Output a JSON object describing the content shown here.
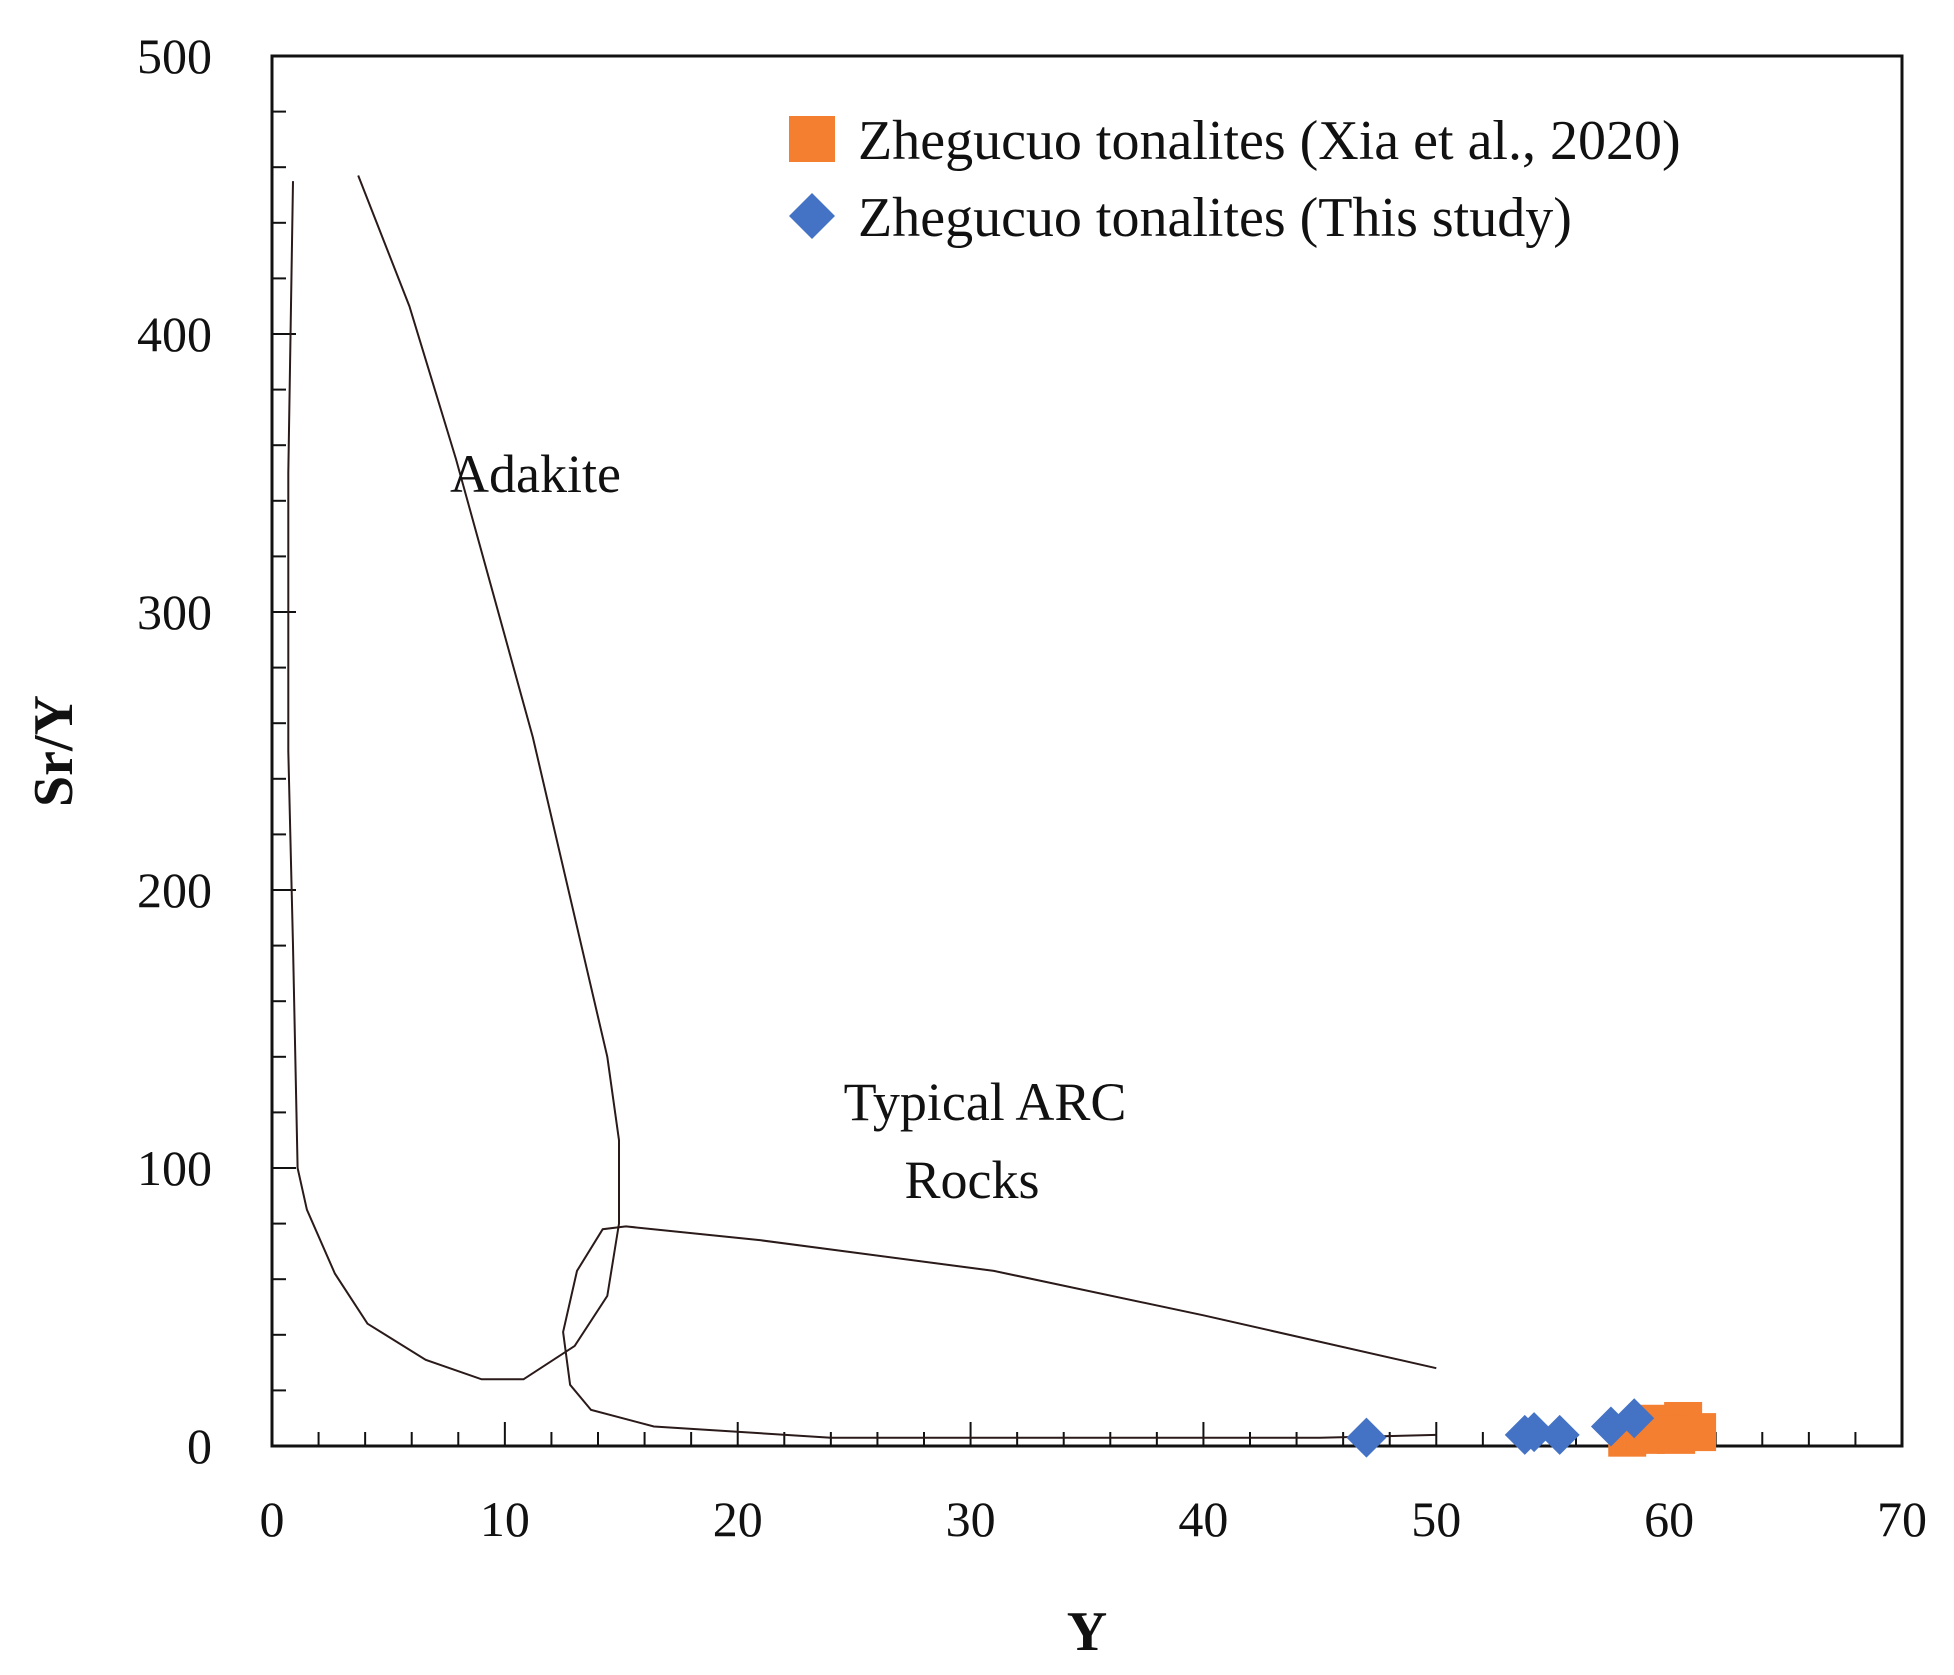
{
  "chart_data": {
    "type": "scatter",
    "title": "",
    "xlabel": "Y",
    "ylabel": "Sr/Y",
    "xlim": [
      0,
      70
    ],
    "ylim": [
      0,
      500
    ],
    "x_ticks": [
      0,
      10,
      20,
      30,
      40,
      50,
      60,
      70
    ],
    "y_ticks": [
      0,
      100,
      200,
      300,
      400,
      500
    ],
    "x_tick_labels": [
      "0",
      "10",
      "20",
      "30",
      "40",
      "50",
      "60",
      "70"
    ],
    "y_tick_labels": [
      "0",
      "100",
      "200",
      "300",
      "400",
      "500"
    ],
    "legend_position": "top-right",
    "series": [
      {
        "name": "Zhegucuo tonalites (Xia et al., 2020)",
        "marker": "square",
        "color": "#F47F30",
        "points": [
          [
            58.2,
            3
          ],
          [
            58.8,
            6
          ],
          [
            59.4,
            8
          ],
          [
            60.0,
            7
          ],
          [
            60.6,
            9
          ],
          [
            61.2,
            5
          ],
          [
            59.0,
            4
          ],
          [
            60.3,
            4
          ]
        ]
      },
      {
        "name": "Zhegucuo tonalites (This study)",
        "marker": "diamond",
        "color": "#4472C4",
        "points": [
          [
            47.0,
            3
          ],
          [
            53.8,
            4
          ],
          [
            54.2,
            5
          ],
          [
            55.3,
            4
          ],
          [
            57.5,
            7
          ],
          [
            58.5,
            10
          ]
        ]
      }
    ],
    "regions": [
      {
        "name": "Adakite",
        "label": "Adakite",
        "boundary": [
          [
            0.9,
            455
          ],
          [
            0.7,
            350
          ],
          [
            0.7,
            250
          ],
          [
            0.9,
            180
          ],
          [
            1.1,
            100
          ],
          [
            1.5,
            85
          ],
          [
            2.7,
            62
          ],
          [
            4.1,
            44
          ],
          [
            6.6,
            31
          ],
          [
            9.0,
            24
          ],
          [
            10.8,
            24
          ],
          [
            13.0,
            36
          ],
          [
            14.4,
            54
          ],
          [
            14.9,
            80
          ],
          [
            14.9,
            110
          ],
          [
            14.4,
            140
          ],
          [
            11.2,
            255
          ],
          [
            7.9,
            355
          ],
          [
            5.9,
            410
          ],
          [
            3.7,
            457
          ]
        ]
      },
      {
        "name": "Typical ARC Rocks",
        "label": [
          "Typical ARC",
          "Rocks"
        ],
        "boundary": [
          [
            50.0,
            28
          ],
          [
            40.0,
            47
          ],
          [
            31.0,
            63
          ],
          [
            21.0,
            74
          ],
          [
            15.2,
            79
          ],
          [
            14.2,
            78
          ],
          [
            13.1,
            63
          ],
          [
            12.5,
            41
          ],
          [
            12.8,
            22
          ],
          [
            13.7,
            13
          ],
          [
            16.4,
            7
          ],
          [
            24.0,
            3
          ],
          [
            35.0,
            3
          ],
          [
            45.0,
            3
          ],
          [
            50.0,
            4
          ]
        ]
      }
    ]
  }
}
